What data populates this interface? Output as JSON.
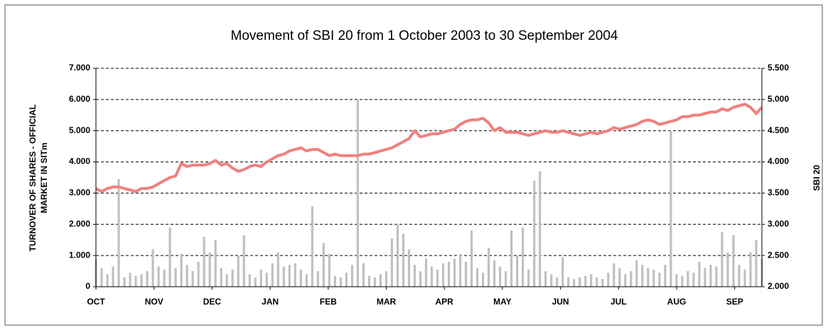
{
  "chart_data": {
    "type": "bar-line",
    "title": "Movement of SBI 20 from 1 October 2003 to 30 September 2004",
    "y_label": [
      "TURNOVER OF SHARES - OFFICIAL",
      "MARKET IN  SITm"
    ],
    "y2_label": "SBI 20",
    "months": [
      "OCT",
      "NOV",
      "DEC",
      "JAN",
      "FEB",
      "MAR",
      "APR",
      "MAY",
      "JUN",
      "JUL",
      "AUG",
      "SEP"
    ],
    "ylim": [
      0,
      7000
    ],
    "yticks": [
      {
        "value": 0,
        "label": "0"
      },
      {
        "value": 1000,
        "label": "1.000"
      },
      {
        "value": 2000,
        "label": "2.000"
      },
      {
        "value": 3000,
        "label": "3.000"
      },
      {
        "value": 4000,
        "label": "4.000"
      },
      {
        "value": 5000,
        "label": "5.000"
      },
      {
        "value": 6000,
        "label": "6.000"
      },
      {
        "value": 7000,
        "label": "7.000"
      }
    ],
    "y2lim": [
      2000,
      5500
    ],
    "y2ticks": [
      {
        "value": 2000,
        "label": "2.000"
      },
      {
        "value": 2500,
        "label": "2.500"
      },
      {
        "value": 3000,
        "label": "3.000"
      },
      {
        "value": 3500,
        "label": "3.500"
      },
      {
        "value": 4000,
        "label": "4.000"
      },
      {
        "value": 4500,
        "label": "4.500"
      },
      {
        "value": 5000,
        "label": "5.000"
      },
      {
        "value": 5500,
        "label": "5.500"
      }
    ],
    "grid": true,
    "series": [
      {
        "kind": "bar",
        "color": "#c0c0c0",
        "values": [
          900,
          600,
          400,
          650,
          3450,
          300,
          450,
          350,
          400,
          500,
          1200,
          650,
          550,
          1900,
          600,
          1050,
          700,
          500,
          800,
          1600,
          1100,
          1500,
          600,
          400,
          550,
          1000,
          1650,
          400,
          300,
          550,
          450,
          750,
          1100,
          650,
          700,
          750,
          550,
          400,
          2580,
          500,
          1400,
          1050,
          350,
          300,
          450,
          700,
          6000,
          750,
          350,
          300,
          400,
          500,
          1550,
          2000,
          1700,
          1200,
          700,
          500,
          900,
          650,
          550,
          750,
          800,
          900,
          1050,
          800,
          1800,
          600,
          450,
          1250,
          850,
          650,
          500,
          1800,
          1000,
          1900,
          550,
          3400,
          3700,
          500,
          400,
          300,
          950,
          300,
          250,
          300,
          350,
          400,
          300,
          250,
          450,
          750,
          600,
          400,
          500,
          850,
          700,
          600,
          550,
          450,
          700,
          5000,
          400,
          350,
          500,
          450,
          800,
          600,
          700,
          650,
          1750,
          1100,
          1650,
          700,
          550,
          1100,
          1500,
          900
        ]
      },
      {
        "kind": "line",
        "axis": "y2",
        "color": "#f08080",
        "values": [
          3575,
          3525,
          3575,
          3600,
          3600,
          3575,
          3550,
          3525,
          3575,
          3575,
          3600,
          3650,
          3700,
          3750,
          3775,
          3975,
          3925,
          3950,
          3950,
          3950,
          3975,
          4025,
          3950,
          3975,
          3900,
          3850,
          3875,
          3925,
          3950,
          3925,
          4000,
          4050,
          4100,
          4125,
          4175,
          4200,
          4225,
          4175,
          4200,
          4200,
          4150,
          4100,
          4125,
          4100,
          4100,
          4100,
          4100,
          4125,
          4125,
          4150,
          4175,
          4200,
          4225,
          4275,
          4325,
          4375,
          4500,
          4400,
          4425,
          4450,
          4450,
          4475,
          4500,
          4525,
          4600,
          4650,
          4675,
          4675,
          4700,
          4625,
          4500,
          4550,
          4475,
          4475,
          4475,
          4450,
          4425,
          4450,
          4475,
          4500,
          4475,
          4475,
          4500,
          4475,
          4450,
          4425,
          4450,
          4475,
          4450,
          4475,
          4500,
          4550,
          4525,
          4550,
          4575,
          4600,
          4650,
          4675,
          4650,
          4600,
          4625,
          4650,
          4675,
          4725,
          4725,
          4750,
          4750,
          4775,
          4800,
          4800,
          4850,
          4825,
          4875,
          4900,
          4925,
          4875,
          4775,
          4875
        ]
      }
    ]
  }
}
